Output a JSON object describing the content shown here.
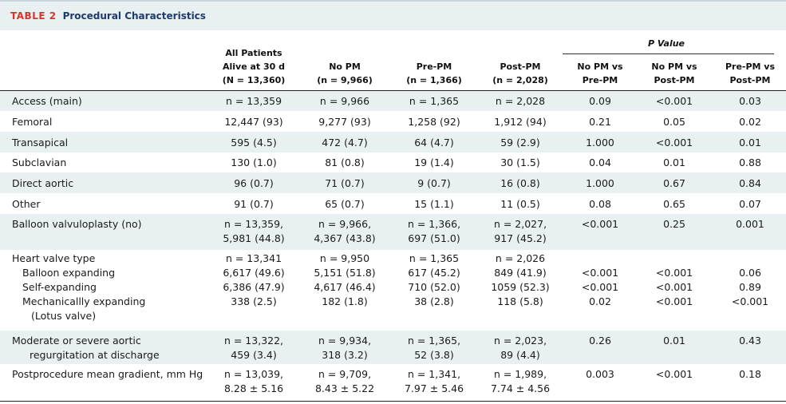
{
  "title": {
    "label": "TABLE 2",
    "caption": "Procedural Characteristics"
  },
  "header": {
    "pvalue_label": "P Value",
    "columns": [
      [
        "All Patients",
        "Alive at 30 d",
        "(N = 13,360)"
      ],
      [
        "No PM",
        "(n = 9,966)"
      ],
      [
        "Pre-PM",
        "(n = 1,366)"
      ],
      [
        "Post-PM",
        "(n = 2,028)"
      ],
      [
        "No PM vs",
        "Pre-PM"
      ],
      [
        "No PM vs",
        "Post-PM"
      ],
      [
        "Pre-PM vs",
        "Post-PM"
      ]
    ]
  },
  "rows": [
    {
      "label": [
        "Access (main)"
      ],
      "cells": [
        [
          "n = 13,359"
        ],
        [
          "n = 9,966"
        ],
        [
          "n = 1,365"
        ],
        [
          "n = 2,028"
        ],
        [
          "0.09"
        ],
        [
          "<0.001"
        ],
        [
          "0.03"
        ]
      ]
    },
    {
      "label": [
        "Femoral"
      ],
      "cells": [
        [
          "12,447 (93)"
        ],
        [
          "9,277 (93)"
        ],
        [
          "1,258 (92)"
        ],
        [
          "1,912 (94)"
        ],
        [
          "0.21"
        ],
        [
          "0.05"
        ],
        [
          "0.02"
        ]
      ]
    },
    {
      "label": [
        "Transapical"
      ],
      "cells": [
        [
          "595 (4.5)"
        ],
        [
          "472 (4.7)"
        ],
        [
          "64 (4.7)"
        ],
        [
          "59 (2.9)"
        ],
        [
          "1.000"
        ],
        [
          "<0.001"
        ],
        [
          "0.01"
        ]
      ]
    },
    {
      "label": [
        "Subclavian"
      ],
      "cells": [
        [
          "130 (1.0)"
        ],
        [
          "81 (0.8)"
        ],
        [
          "19 (1.4)"
        ],
        [
          "30 (1.5)"
        ],
        [
          "0.04"
        ],
        [
          "0.01"
        ],
        [
          "0.88"
        ]
      ]
    },
    {
      "label": [
        "Direct aortic"
      ],
      "cells": [
        [
          "96 (0.7)"
        ],
        [
          "71 (0.7)"
        ],
        [
          "9 (0.7)"
        ],
        [
          "16 (0.8)"
        ],
        [
          "1.000"
        ],
        [
          "0.67"
        ],
        [
          "0.84"
        ]
      ]
    },
    {
      "label": [
        "Other"
      ],
      "cells": [
        [
          "91 (0.7)"
        ],
        [
          "65 (0.7)"
        ],
        [
          "15 (1.1)"
        ],
        [
          "11 (0.5)"
        ],
        [
          "0.08"
        ],
        [
          "0.65"
        ],
        [
          "0.07"
        ]
      ]
    },
    {
      "label": [
        "Balloon valvuloplasty (no)"
      ],
      "cells": [
        [
          "n = 13,359,",
          "5,981 (44.8)"
        ],
        [
          "n = 9,966,",
          "4,367 (43.8)"
        ],
        [
          "n = 1,366,",
          "697 (51.0)"
        ],
        [
          "n = 2,027,",
          "917 (45.2)"
        ],
        [
          "<0.001"
        ],
        [
          "0.25"
        ],
        [
          "0.001"
        ]
      ]
    },
    {
      "label": [
        "Heart valve type",
        "Balloon expanding",
        "Self-expanding",
        "Mechanicallly expanding",
        "(Lotus valve)"
      ],
      "cells": [
        [
          "n = 13,341",
          "6,617 (49.6)",
          "6,386 (47.9)",
          "338 (2.5)"
        ],
        [
          "n = 9,950",
          "5,151 (51.8)",
          "4,617 (46.4)",
          "182 (1.8)"
        ],
        [
          "n = 1,365",
          "617 (45.2)",
          "710 (52.0)",
          "38 (2.8)"
        ],
        [
          "n = 2,026",
          "849 (41.9)",
          "1059 (52.3)",
          "118 (5.8)"
        ],
        [
          "",
          "<0.001",
          "<0.001",
          "0.02"
        ],
        [
          "",
          "<0.001",
          "<0.001",
          "<0.001"
        ],
        [
          "",
          "0.06",
          "0.89",
          "<0.001"
        ]
      ]
    },
    {
      "label": [
        "Moderate or severe aortic",
        "regurgitation at discharge"
      ],
      "cells": [
        [
          "n = 13,322,",
          "459 (3.4)"
        ],
        [
          "n = 9,934,",
          "318 (3.2)"
        ],
        [
          "n = 1,365,",
          "52 (3.8)"
        ],
        [
          "n = 2,023,",
          "89 (4.4)"
        ],
        [
          "0.26"
        ],
        [
          "0.01"
        ],
        [
          "0.43"
        ]
      ]
    },
    {
      "label": [
        "Postprocedure mean gradient, mm Hg"
      ],
      "cells": [
        [
          "n = 13,039,",
          "8.28 ± 5.16"
        ],
        [
          "n = 9,709,",
          "8.43 ± 5.22"
        ],
        [
          "n = 1,341,",
          "7.97 ± 5.46"
        ],
        [
          "n = 1,989,",
          "7.74 ± 4.56"
        ],
        [
          "0.003"
        ],
        [
          "<0.001"
        ],
        [
          "0.18"
        ]
      ]
    }
  ]
}
